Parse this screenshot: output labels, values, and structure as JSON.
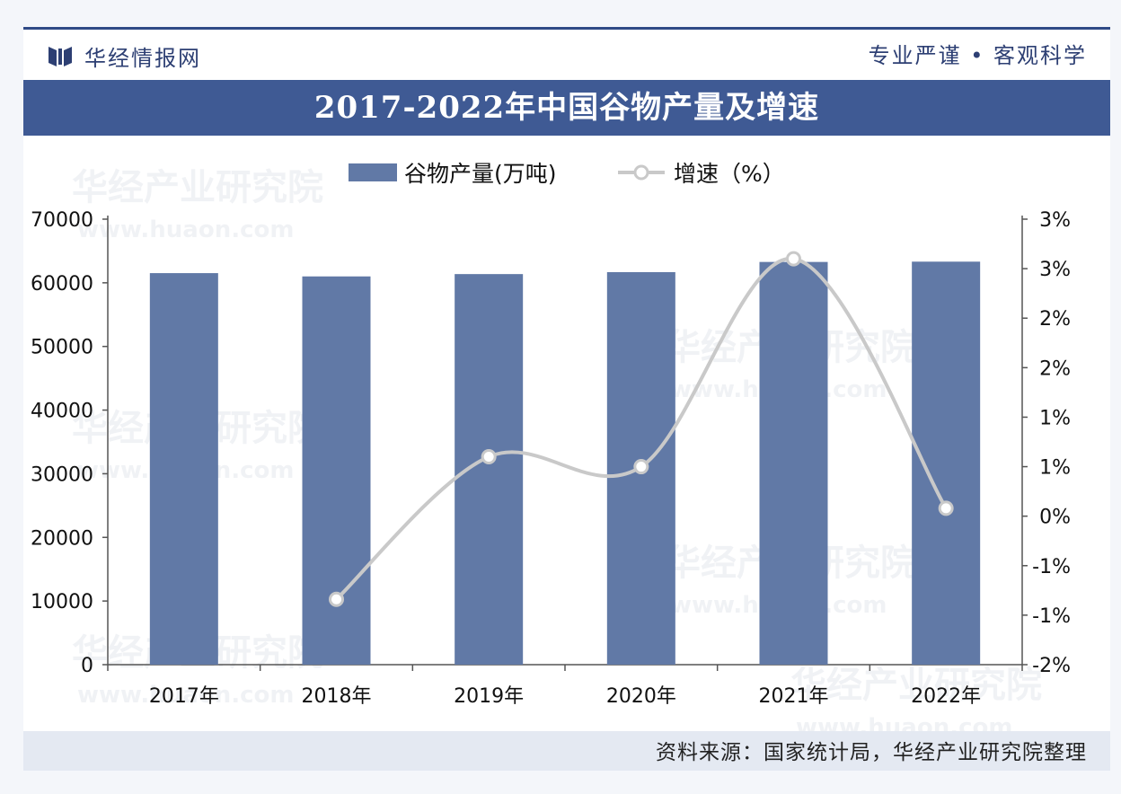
{
  "header": {
    "brand": "华经情报网",
    "slogan": "专业严谨 • 客观科学"
  },
  "watermark": {
    "name": "华经产业研究院",
    "url": "www.huaon.com"
  },
  "footer": {
    "source": "资料来源：国家统计局，华经产业研究院整理"
  },
  "colors": {
    "bar": "#6179a6",
    "line": "#c9c9c9",
    "title_bg": "#3f5a94",
    "brand": "#2d3f73"
  },
  "chart_data": {
    "type": "bar",
    "title": "2017-2022年中国谷物产量及增速",
    "categories": [
      "2017年",
      "2018年",
      "2019年",
      "2020年",
      "2021年",
      "2022年"
    ],
    "series": [
      {
        "name": "谷物产量(万吨)",
        "type": "bar",
        "axis": "left",
        "values": [
          61521,
          61004,
          61370,
          61674,
          63276,
          63324
        ]
      },
      {
        "name": "增速（%）",
        "type": "line",
        "axis": "right",
        "smooth": true,
        "values": [
          null,
          -0.84,
          0.6,
          0.5,
          2.6,
          0.08
        ]
      }
    ],
    "y_left": {
      "lim": [
        0,
        70000
      ],
      "ticks": [
        0,
        10000,
        20000,
        30000,
        40000,
        50000,
        60000,
        70000
      ],
      "tick_labels": [
        "0",
        "10000",
        "20000",
        "30000",
        "40000",
        "50000",
        "60000",
        "70000"
      ]
    },
    "y_right": {
      "lim": [
        -1.5,
        3.0
      ],
      "ticks": [
        -1.5,
        -1.0,
        -0.5,
        0.0,
        0.5,
        1.0,
        1.5,
        2.0,
        2.5,
        3.0
      ],
      "tick_labels": [
        "-2%",
        "-1%",
        "-1%",
        "0%",
        "1%",
        "1%",
        "2%",
        "2%",
        "3%",
        "3%"
      ]
    },
    "legend_position": "top",
    "grid": false
  }
}
